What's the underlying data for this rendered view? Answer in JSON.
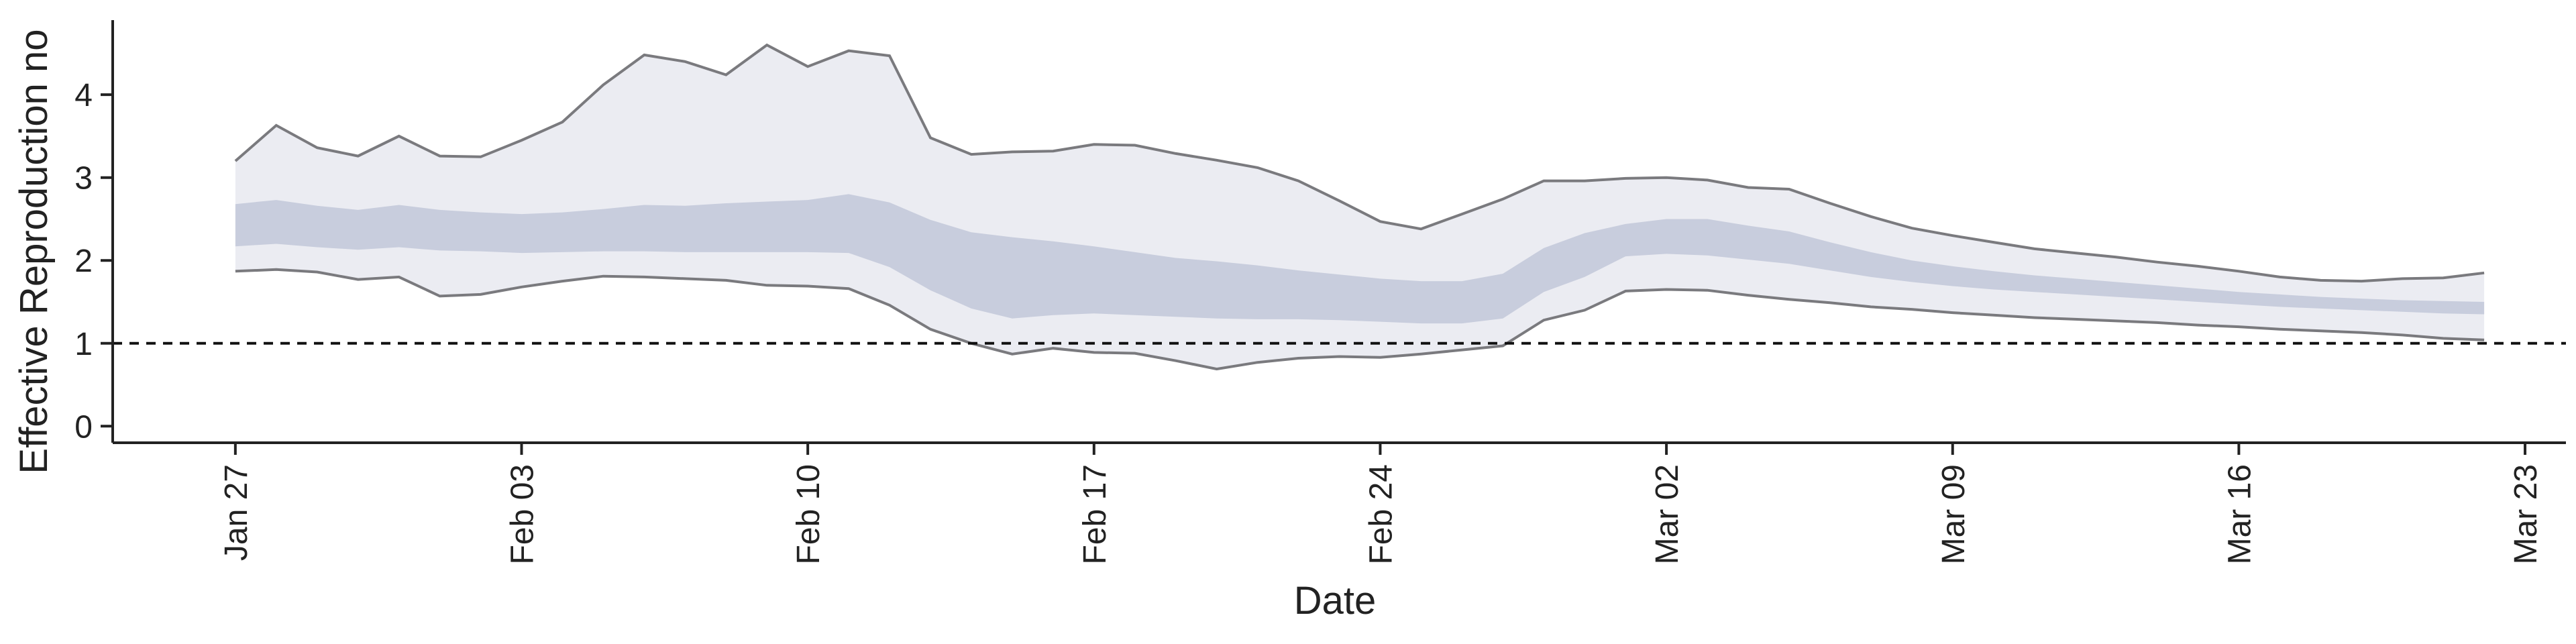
{
  "chart_data": {
    "type": "area",
    "xlabel": "Date",
    "ylabel": "Effective Reproduction no",
    "x_ticks": [
      "Jan 27",
      "Feb 03",
      "Feb 10",
      "Feb 17",
      "Feb 24",
      "Mar 02",
      "Mar 09",
      "Mar 16",
      "Mar 23"
    ],
    "y_ticks": [
      0,
      1,
      2,
      3,
      4
    ],
    "ylim": [
      -0.2,
      4.9
    ],
    "xlim": [
      "2020-01-24",
      "2020-03-24"
    ],
    "reference_line": {
      "y": 1,
      "style": "dashed"
    },
    "grid": false,
    "colors": {
      "outer_band": "#ebecf2",
      "inner_band": "#c8cddd",
      "bound_line": "#7a7a7e",
      "reference": "#111111",
      "axis": "#222222"
    },
    "x": [
      "2020-01-27",
      "2020-01-28",
      "2020-01-29",
      "2020-01-30",
      "2020-01-31",
      "2020-02-01",
      "2020-02-02",
      "2020-02-03",
      "2020-02-04",
      "2020-02-05",
      "2020-02-06",
      "2020-02-07",
      "2020-02-08",
      "2020-02-09",
      "2020-02-10",
      "2020-02-11",
      "2020-02-12",
      "2020-02-13",
      "2020-02-14",
      "2020-02-15",
      "2020-02-16",
      "2020-02-17",
      "2020-02-18",
      "2020-02-19",
      "2020-02-20",
      "2020-02-21",
      "2020-02-22",
      "2020-02-23",
      "2020-02-24",
      "2020-02-25",
      "2020-02-26",
      "2020-02-27",
      "2020-02-28",
      "2020-02-29",
      "2020-03-01",
      "2020-03-02",
      "2020-03-03",
      "2020-03-04",
      "2020-03-05",
      "2020-03-06",
      "2020-03-07",
      "2020-03-08",
      "2020-03-09",
      "2020-03-10",
      "2020-03-11",
      "2020-03-12",
      "2020-03-13",
      "2020-03-14",
      "2020-03-15",
      "2020-03-16",
      "2020-03-17",
      "2020-03-18",
      "2020-03-19",
      "2020-03-20",
      "2020-03-21",
      "2020-03-22"
    ],
    "series": [
      {
        "kind": "outer_band",
        "upper": [
          3.2,
          3.63,
          3.36,
          3.26,
          3.5,
          3.26,
          3.25,
          3.45,
          3.67,
          4.12,
          4.48,
          4.4,
          4.24,
          4.6,
          4.34,
          4.53,
          4.47,
          3.48,
          3.28,
          3.31,
          3.32,
          3.4,
          3.39,
          3.29,
          3.21,
          3.12,
          2.96,
          2.72,
          2.47,
          2.38,
          2.56,
          2.74,
          2.96,
          2.96,
          2.99,
          3.0,
          2.97,
          2.88,
          2.86,
          2.69,
          2.53,
          2.39,
          2.3,
          2.22,
          2.14,
          2.09,
          2.04,
          1.98,
          1.93,
          1.87,
          1.8,
          1.76,
          1.75,
          1.78,
          1.79,
          1.85
        ],
        "lower": [
          1.87,
          1.89,
          1.86,
          1.77,
          1.8,
          1.57,
          1.59,
          1.68,
          1.75,
          1.81,
          1.8,
          1.78,
          1.76,
          1.7,
          1.69,
          1.66,
          1.46,
          1.17,
          1.0,
          0.87,
          0.94,
          0.89,
          0.88,
          0.79,
          0.69,
          0.77,
          0.82,
          0.84,
          0.83,
          0.87,
          0.92,
          0.97,
          1.28,
          1.4,
          1.63,
          1.65,
          1.64,
          1.58,
          1.53,
          1.49,
          1.44,
          1.41,
          1.37,
          1.34,
          1.31,
          1.29,
          1.27,
          1.25,
          1.22,
          1.2,
          1.17,
          1.15,
          1.13,
          1.1,
          1.06,
          1.04
        ]
      },
      {
        "kind": "inner_band",
        "upper": [
          2.68,
          2.73,
          2.66,
          2.61,
          2.67,
          2.61,
          2.58,
          2.56,
          2.58,
          2.62,
          2.67,
          2.66,
          2.69,
          2.71,
          2.73,
          2.8,
          2.7,
          2.49,
          2.34,
          2.28,
          2.23,
          2.17,
          2.1,
          2.03,
          1.99,
          1.94,
          1.88,
          1.83,
          1.78,
          1.75,
          1.75,
          1.84,
          2.15,
          2.33,
          2.44,
          2.5,
          2.5,
          2.42,
          2.35,
          2.22,
          2.1,
          2.0,
          1.93,
          1.87,
          1.82,
          1.78,
          1.74,
          1.7,
          1.66,
          1.62,
          1.59,
          1.56,
          1.54,
          1.52,
          1.51,
          1.5
        ],
        "lower": [
          2.17,
          2.2,
          2.16,
          2.13,
          2.16,
          2.12,
          2.11,
          2.09,
          2.1,
          2.11,
          2.11,
          2.1,
          2.1,
          2.1,
          2.1,
          2.09,
          1.92,
          1.64,
          1.42,
          1.3,
          1.34,
          1.36,
          1.34,
          1.32,
          1.3,
          1.29,
          1.29,
          1.28,
          1.26,
          1.24,
          1.24,
          1.3,
          1.62,
          1.8,
          2.05,
          2.08,
          2.06,
          2.01,
          1.96,
          1.88,
          1.8,
          1.74,
          1.69,
          1.65,
          1.62,
          1.59,
          1.56,
          1.53,
          1.5,
          1.47,
          1.44,
          1.42,
          1.4,
          1.38,
          1.36,
          1.35
        ]
      }
    ]
  }
}
